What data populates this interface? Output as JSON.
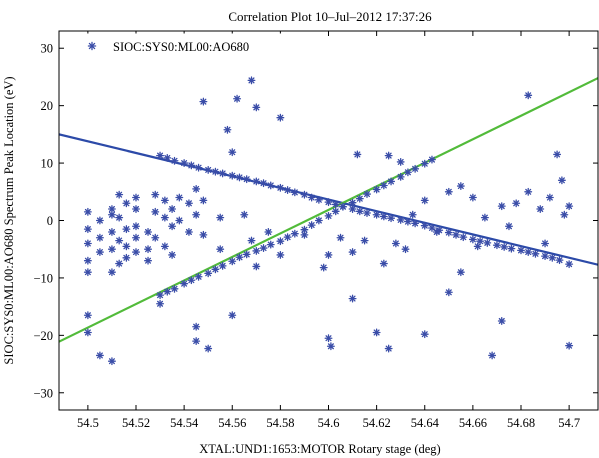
{
  "chart_data": {
    "type": "scatter",
    "title": "Correlation Plot 10–Jul–2012 17:37:26",
    "xlabel": "XTAL:UND1:1653:MOTOR Rotary stage (deg)",
    "ylabel": "SIOC:SYS0:ML00:AO680 Spectrum Peak Location (eV)",
    "xlim": [
      54.488,
      54.712
    ],
    "ylim": [
      -33,
      33
    ],
    "xticks": [
      54.5,
      54.52,
      54.54,
      54.56,
      54.58,
      54.6,
      54.62,
      54.64,
      54.66,
      54.68,
      54.7
    ],
    "xtick_labels": [
      "54.5",
      "54.52",
      "54.54",
      "54.56",
      "54.58",
      "54.6",
      "54.62",
      "54.64",
      "54.66",
      "54.68",
      "54.7"
    ],
    "yticks": [
      -30,
      -20,
      -10,
      0,
      10,
      20,
      30
    ],
    "ytick_labels": [
      "−30",
      "−20",
      "−10",
      "0",
      "10",
      "20",
      "30"
    ],
    "grid": false,
    "legend_position": "top-left",
    "marker": "asterisk",
    "series": [
      {
        "name": "SIOC:SYS0:ML00:AO680",
        "color": "#3a4da8",
        "points": [
          [
            54.53,
            11.3
          ],
          [
            54.533,
            10.9
          ],
          [
            54.536,
            10.4
          ],
          [
            54.54,
            10.0
          ],
          [
            54.543,
            9.6
          ],
          [
            54.546,
            9.2
          ],
          [
            54.55,
            8.8
          ],
          [
            54.553,
            8.5
          ],
          [
            54.556,
            8.2
          ],
          [
            54.56,
            7.8
          ],
          [
            54.563,
            7.5
          ],
          [
            54.566,
            7.2
          ],
          [
            54.57,
            6.8
          ],
          [
            54.573,
            6.5
          ],
          [
            54.576,
            6.1
          ],
          [
            54.58,
            5.7
          ],
          [
            54.583,
            5.3
          ],
          [
            54.586,
            4.9
          ],
          [
            54.59,
            4.5
          ],
          [
            54.593,
            4.0
          ],
          [
            54.596,
            3.6
          ],
          [
            54.6,
            3.2
          ],
          [
            54.603,
            2.8
          ],
          [
            54.606,
            2.4
          ],
          [
            54.61,
            2.0
          ],
          [
            54.613,
            1.6
          ],
          [
            54.616,
            1.3
          ],
          [
            54.62,
            1.0
          ],
          [
            54.623,
            0.7
          ],
          [
            54.626,
            0.4
          ],
          [
            54.63,
            0.1
          ],
          [
            54.633,
            -0.2
          ],
          [
            54.636,
            -0.5
          ],
          [
            54.64,
            -0.9
          ],
          [
            54.643,
            -1.3
          ],
          [
            54.646,
            -1.7
          ],
          [
            54.65,
            -2.1
          ],
          [
            54.653,
            -2.5
          ],
          [
            54.656,
            -2.9
          ],
          [
            54.66,
            -3.3
          ],
          [
            54.663,
            -3.6
          ],
          [
            54.666,
            -3.9
          ],
          [
            54.67,
            -4.3
          ],
          [
            54.673,
            -4.6
          ],
          [
            54.676,
            -4.9
          ],
          [
            54.68,
            -5.2
          ],
          [
            54.683,
            -5.5
          ],
          [
            54.686,
            -5.8
          ],
          [
            54.69,
            -6.2
          ],
          [
            54.693,
            -6.5
          ],
          [
            54.696,
            -6.9
          ],
          [
            54.7,
            -7.6
          ],
          [
            54.53,
            -13.0
          ],
          [
            54.533,
            -12.4
          ],
          [
            54.536,
            -11.9
          ],
          [
            54.54,
            -11.0
          ],
          [
            54.543,
            -10.4
          ],
          [
            54.546,
            -9.8
          ],
          [
            54.55,
            -9.2
          ],
          [
            54.553,
            -8.5
          ],
          [
            54.556,
            -7.9
          ],
          [
            54.56,
            -7.1
          ],
          [
            54.563,
            -6.4
          ],
          [
            54.566,
            -5.9
          ],
          [
            54.57,
            -5.3
          ],
          [
            54.573,
            -4.8
          ],
          [
            54.576,
            -4.2
          ],
          [
            54.58,
            -3.6
          ],
          [
            54.583,
            -2.9
          ],
          [
            54.586,
            -2.3
          ],
          [
            54.59,
            -1.6
          ],
          [
            54.593,
            -0.8
          ],
          [
            54.596,
            0.0
          ],
          [
            54.6,
            0.8
          ],
          [
            54.603,
            1.6
          ],
          [
            54.606,
            2.4
          ],
          [
            54.61,
            3.1
          ],
          [
            54.613,
            3.8
          ],
          [
            54.616,
            4.6
          ],
          [
            54.62,
            5.4
          ],
          [
            54.623,
            6.1
          ],
          [
            54.626,
            6.8
          ],
          [
            54.63,
            7.6
          ],
          [
            54.633,
            8.4
          ],
          [
            54.636,
            9.0
          ],
          [
            54.64,
            9.9
          ],
          [
            54.643,
            10.6
          ],
          [
            54.5,
            -4.0
          ],
          [
            54.5,
            -7.0
          ],
          [
            54.5,
            -1.5
          ],
          [
            54.5,
            1.5
          ],
          [
            54.5,
            -16.5
          ],
          [
            54.5,
            -19.5
          ],
          [
            54.5,
            -9.0
          ],
          [
            54.505,
            -3.0
          ],
          [
            54.505,
            0.0
          ],
          [
            54.505,
            -5.5
          ],
          [
            54.51,
            1.0
          ],
          [
            54.51,
            -2.0
          ],
          [
            54.51,
            -5.0
          ],
          [
            54.51,
            -9.0
          ],
          [
            54.51,
            2.0
          ],
          [
            54.513,
            4.5
          ],
          [
            54.513,
            0.5
          ],
          [
            54.513,
            -3.5
          ],
          [
            54.513,
            -7.5
          ],
          [
            54.516,
            3.0
          ],
          [
            54.516,
            -1.5
          ],
          [
            54.516,
            -4.5
          ],
          [
            54.516,
            -6.5
          ],
          [
            54.52,
            2.0
          ],
          [
            54.52,
            -1.0
          ],
          [
            54.52,
            -3.0
          ],
          [
            54.52,
            -5.5
          ],
          [
            54.52,
            4.0
          ],
          [
            54.525,
            -2.0
          ],
          [
            54.525,
            -5.0
          ],
          [
            54.525,
            -7.0
          ],
          [
            54.528,
            1.5
          ],
          [
            54.528,
            -3.0
          ],
          [
            54.528,
            4.5
          ],
          [
            54.532,
            3.5
          ],
          [
            54.532,
            0.5
          ],
          [
            54.532,
            -4.5
          ],
          [
            54.535,
            2.0
          ],
          [
            54.535,
            -1.0
          ],
          [
            54.535,
            -6.0
          ],
          [
            54.538,
            4.0
          ],
          [
            54.538,
            0.0
          ],
          [
            54.542,
            3.0
          ],
          [
            54.542,
            -2.0
          ],
          [
            54.545,
            5.5
          ],
          [
            54.545,
            1.0
          ],
          [
            54.548,
            3.5
          ],
          [
            54.548,
            -2.5
          ],
          [
            54.545,
            -18.5
          ],
          [
            54.545,
            -21.0
          ],
          [
            54.55,
            -22.3
          ],
          [
            54.53,
            -14.5
          ],
          [
            54.51,
            -24.5
          ],
          [
            54.505,
            -23.5
          ],
          [
            54.56,
            -16.5
          ],
          [
            54.548,
            20.7
          ],
          [
            54.558,
            15.8
          ],
          [
            54.562,
            21.2
          ],
          [
            54.568,
            24.4
          ],
          [
            54.57,
            19.7
          ],
          [
            54.58,
            17.9
          ],
          [
            54.56,
            11.9
          ],
          [
            54.598,
            -8.2
          ],
          [
            54.6,
            -20.5
          ],
          [
            54.601,
            -21.9
          ],
          [
            54.61,
            -13.6
          ],
          [
            54.61,
            -5.5
          ],
          [
            54.612,
            11.5
          ],
          [
            54.62,
            -19.5
          ],
          [
            54.625,
            -22.3
          ],
          [
            54.623,
            -7.5
          ],
          [
            54.632,
            -5.0
          ],
          [
            54.64,
            -19.8
          ],
          [
            54.64,
            3.5
          ],
          [
            54.65,
            5.0
          ],
          [
            54.65,
            -12.5
          ],
          [
            54.655,
            -9.0
          ],
          [
            54.655,
            6.0
          ],
          [
            54.66,
            4.0
          ],
          [
            54.662,
            -4.5
          ],
          [
            54.668,
            -23.5
          ],
          [
            54.672,
            -17.5
          ],
          [
            54.672,
            2.5
          ],
          [
            54.678,
            3.0
          ],
          [
            54.683,
            5.0
          ],
          [
            54.683,
            21.8
          ],
          [
            54.688,
            2.0
          ],
          [
            54.692,
            4.0
          ],
          [
            54.695,
            11.5
          ],
          [
            54.698,
            1.0
          ],
          [
            54.7,
            -21.8
          ],
          [
            54.7,
            2.5
          ],
          [
            54.697,
            7.0
          ],
          [
            54.69,
            -4.0
          ],
          [
            54.675,
            -1.0
          ],
          [
            54.665,
            0.5
          ],
          [
            54.645,
            -2.0
          ],
          [
            54.635,
            1.0
          ],
          [
            54.628,
            -4.0
          ],
          [
            54.625,
            11.3
          ],
          [
            54.63,
            10.2
          ],
          [
            54.615,
            -3.5
          ],
          [
            54.6,
            -6.0
          ],
          [
            54.605,
            -3.0
          ],
          [
            54.59,
            -2.5
          ],
          [
            54.58,
            -6.0
          ],
          [
            54.575,
            -2.0
          ],
          [
            54.57,
            -8.0
          ],
          [
            54.565,
            1.0
          ],
          [
            54.555,
            -5.0
          ],
          [
            54.555,
            0.5
          ],
          [
            54.568,
            -3.5
          ]
        ]
      }
    ],
    "fit_lines": [
      {
        "color": "#2c4aa8",
        "x": [
          54.488,
          54.712
        ],
        "y": [
          15.0,
          -7.7
        ]
      },
      {
        "color": "#52bb3a",
        "x": [
          54.488,
          54.712
        ],
        "y": [
          -21.1,
          24.8
        ]
      }
    ]
  }
}
